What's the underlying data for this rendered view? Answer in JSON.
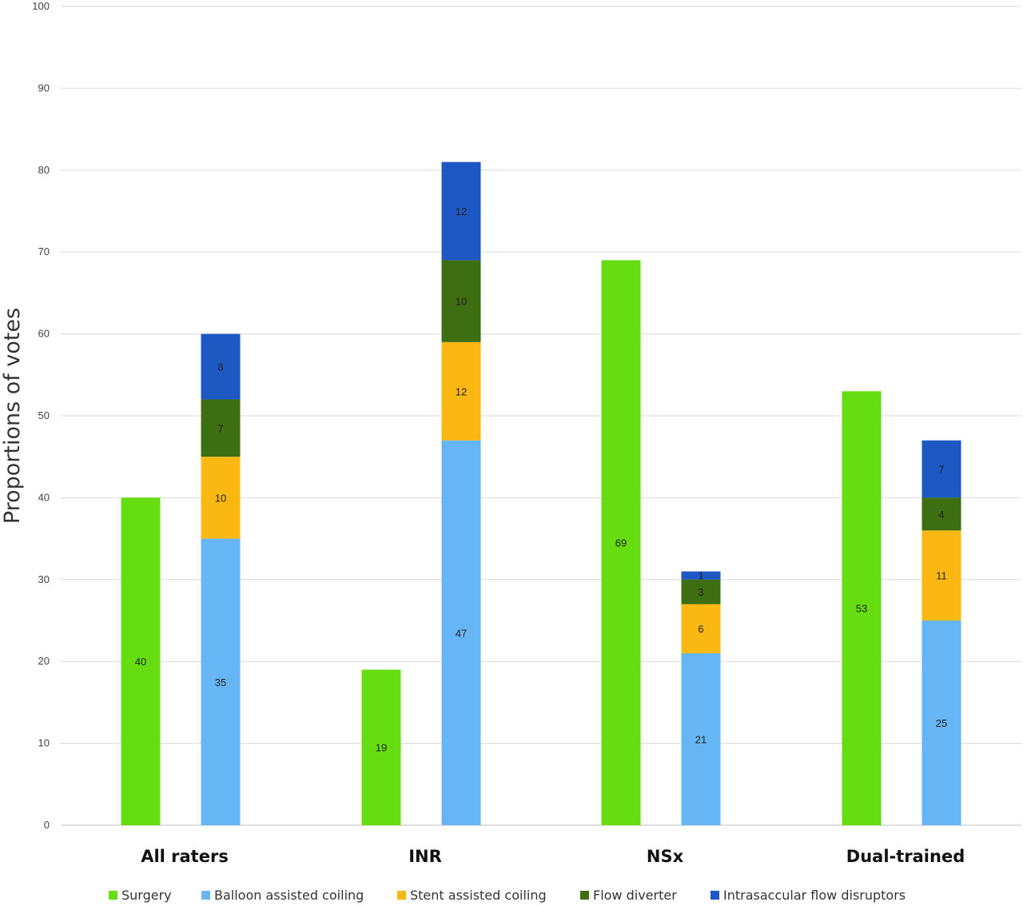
{
  "chart_data": {
    "type": "bar",
    "stacked": true,
    "ylabel": "Proportions of votes",
    "ylim": [
      0,
      100
    ],
    "yticks": [
      0,
      10,
      20,
      30,
      40,
      50,
      60,
      70,
      80,
      90,
      100
    ],
    "grid": true,
    "legend_position": "bottom",
    "categories": [
      "All raters",
      "INR",
      "NSx",
      "Dual-trained"
    ],
    "series": [
      {
        "name": "Surgery",
        "color": "#66dd11",
        "stack": "surgery",
        "values": [
          40,
          19,
          69,
          53
        ]
      },
      {
        "name": "Balloon assisted coiling",
        "color": "#66b5f5",
        "stack": "endovascular",
        "values": [
          35,
          47,
          21,
          25
        ]
      },
      {
        "name": "Stent assisted coiling",
        "color": "#fbb812",
        "stack": "endovascular",
        "values": [
          10,
          12,
          6,
          11
        ]
      },
      {
        "name": "Flow diverter",
        "color": "#3d6f12",
        "stack": "endovascular",
        "values": [
          7,
          10,
          3,
          4
        ]
      },
      {
        "name": "Intrasaccular flow disruptors",
        "color": "#1e58c3",
        "stack": "endovascular",
        "values": [
          8,
          12,
          1,
          7
        ]
      }
    ]
  }
}
